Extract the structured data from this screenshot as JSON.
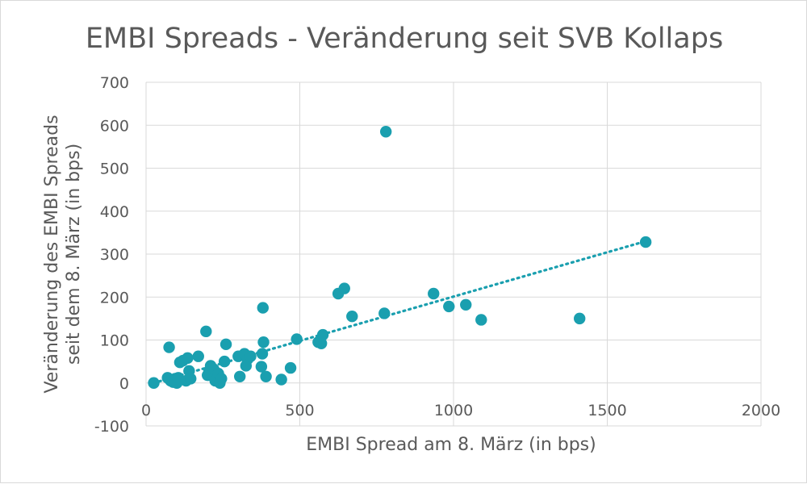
{
  "chart_data": {
    "type": "scatter",
    "title": "EMBI Spreads - Veränderung seit SVB Kollaps",
    "xlabel": "EMBI Spread am 8. März (in bps)",
    "ylabel_lines": [
      "Veränderung des EMBI Spreads",
      "seit dem 8. März (in bps)"
    ],
    "xlim": [
      0,
      2000
    ],
    "ylim": [
      -100,
      700
    ],
    "x_ticks": [
      0,
      500,
      1000,
      1500,
      2000
    ],
    "y_ticks": [
      -100,
      0,
      100,
      200,
      300,
      400,
      500,
      600,
      700
    ],
    "x_tick_labels": [
      "0",
      "500",
      "1000",
      "1500",
      "2000"
    ],
    "y_tick_labels": [
      "-100",
      "0",
      "100",
      "200",
      "300",
      "400",
      "500",
      "600",
      "700"
    ],
    "grid": true,
    "legend": "none",
    "point_color": "#1a9faf",
    "series": [
      {
        "name": "EMBI Spreads",
        "x": [
          25,
          70,
          75,
          80,
          88,
          95,
          100,
          105,
          110,
          120,
          130,
          135,
          140,
          145,
          170,
          195,
          200,
          205,
          210,
          215,
          220,
          225,
          235,
          240,
          245,
          255,
          260,
          300,
          305,
          320,
          325,
          330,
          340,
          375,
          378,
          380,
          382,
          390,
          440,
          470,
          490,
          560,
          570,
          575,
          625,
          645,
          670,
          775,
          780,
          935,
          985,
          1040,
          1090,
          1410,
          1625
        ],
        "y": [
          0,
          12,
          83,
          5,
          2,
          10,
          0,
          12,
          48,
          52,
          5,
          58,
          28,
          10,
          62,
          120,
          18,
          28,
          40,
          20,
          32,
          5,
          22,
          0,
          10,
          50,
          90,
          62,
          15,
          68,
          40,
          55,
          62,
          38,
          68,
          175,
          95,
          15,
          8,
          35,
          102,
          95,
          92,
          112,
          208,
          220,
          155,
          162,
          585,
          208,
          178,
          182,
          147,
          150,
          328
        ]
      }
    ],
    "trendline": {
      "type": "linear",
      "x_range": [
        25,
        1625
      ],
      "y_range": [
        0,
        330
      ]
    }
  }
}
